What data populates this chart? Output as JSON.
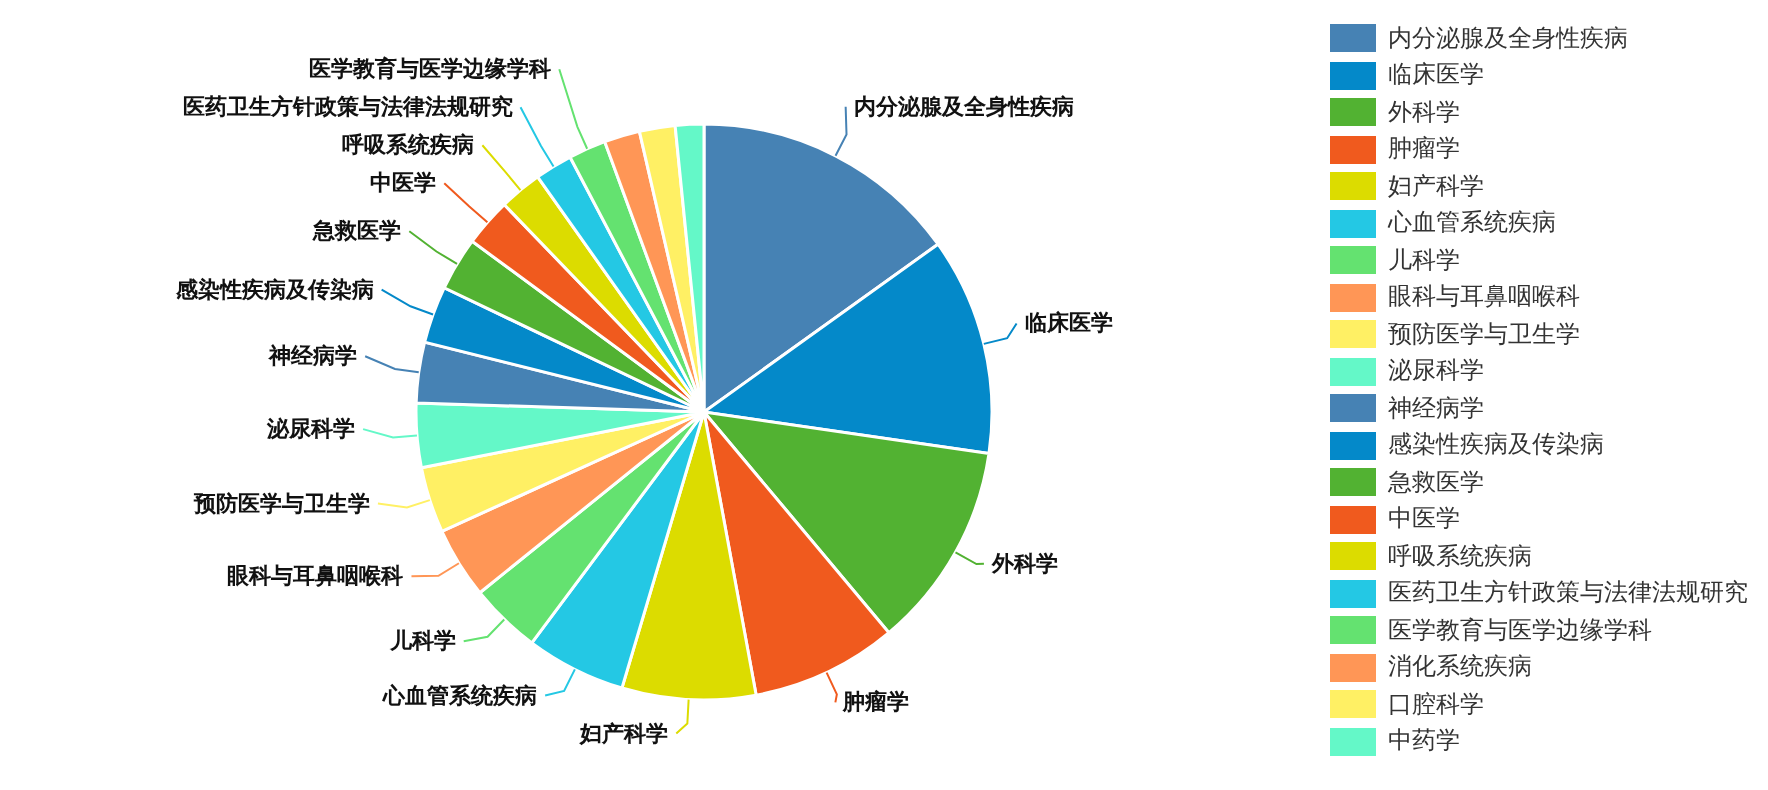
{
  "chart_data": {
    "type": "pie",
    "categories": [
      "内分泌腺及全身性疾病",
      "临床医学",
      "外科学",
      "肿瘤学",
      "妇产科学",
      "心血管系统疾病",
      "儿科学",
      "眼科与耳鼻咽喉科",
      "预防医学与卫生学",
      "泌尿科学",
      "神经病学",
      "感染性疾病及传染病",
      "急救医学",
      "中医学",
      "呼吸系统疾病",
      "医药卫生方针政策与法律法规研究",
      "医学教育与医学边缘学科",
      "消化系统疾病",
      "口腔科学",
      "中药学"
    ],
    "values": [
      15.1,
      12.2,
      11.6,
      8.2,
      7.5,
      5.6,
      4.0,
      4.0,
      3.7,
      3.6,
      3.4,
      3.2,
      3.0,
      2.7,
      2.4,
      2.1,
      2.1,
      2.0,
      2.0,
      1.6
    ],
    "colors": [
      "#4682b4",
      "#0489c9",
      "#52b232",
      "#f05a1e",
      "#dcdc00",
      "#24c8e4",
      "#64e270",
      "#ff9656",
      "#fff064",
      "#64f8c8",
      "#4682b4",
      "#0489c9",
      "#52b232",
      "#f05a1e",
      "#dcdc00",
      "#24c8e4",
      "#64e270",
      "#ff9656",
      "#fff064",
      "#64f8c8"
    ],
    "legend": "right"
  }
}
